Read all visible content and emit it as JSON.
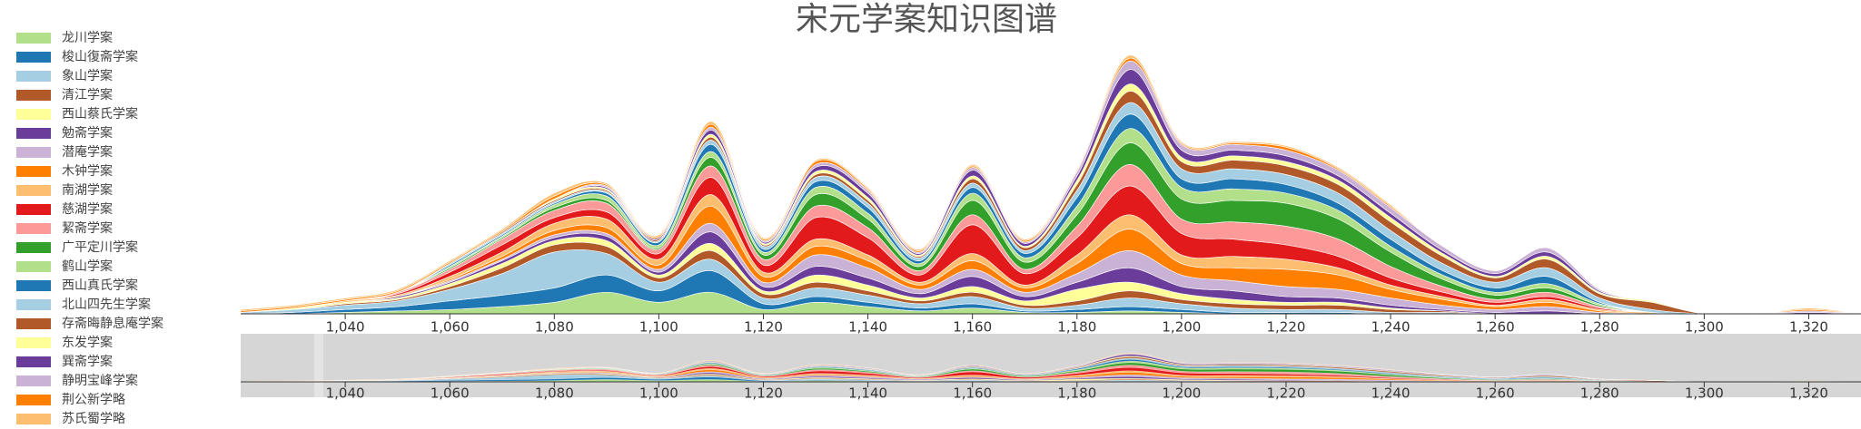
{
  "chart_data": {
    "type": "streamgraph",
    "title": "宋元学案知识图谱",
    "x": [
      1020,
      1030,
      1040,
      1050,
      1060,
      1070,
      1080,
      1090,
      1100,
      1110,
      1120,
      1130,
      1140,
      1150,
      1160,
      1170,
      1180,
      1190,
      1200,
      1210,
      1220,
      1230,
      1240,
      1250,
      1260,
      1270,
      1280,
      1290,
      1300,
      1310,
      1320,
      1330
    ],
    "xlim": [
      1020,
      1330
    ],
    "xticks": [
      {
        "value": 1040,
        "label": "1,040"
      },
      {
        "value": 1060,
        "label": "1,060"
      },
      {
        "value": 1080,
        "label": "1,080"
      },
      {
        "value": 1100,
        "label": "1,100"
      },
      {
        "value": 1120,
        "label": "1,120"
      },
      {
        "value": 1140,
        "label": "1,140"
      },
      {
        "value": 1160,
        "label": "1,160"
      },
      {
        "value": 1180,
        "label": "1,180"
      },
      {
        "value": 1200,
        "label": "1,200"
      },
      {
        "value": 1220,
        "label": "1,220"
      },
      {
        "value": 1240,
        "label": "1,240"
      },
      {
        "value": 1260,
        "label": "1,260"
      },
      {
        "value": 1280,
        "label": "1,280"
      },
      {
        "value": 1300,
        "label": "1,300"
      },
      {
        "value": 1320,
        "label": "1,320"
      }
    ],
    "series": [
      {
        "name": "龙川学案",
        "color": "#b2df8a",
        "values": [
          0,
          0,
          0.1,
          0.2,
          0.3,
          0.5,
          0.8,
          1.5,
          0.8,
          1.5,
          0.3,
          0.8,
          0.5,
          0.2,
          0.4,
          0.1,
          0.1,
          0.2,
          0.1,
          0,
          0,
          0,
          0,
          0,
          0,
          0,
          0,
          0,
          0,
          0,
          0,
          0
        ]
      },
      {
        "name": "梭山復斋学案",
        "color": "#1f78b4",
        "values": [
          0,
          0.1,
          0.2,
          0.3,
          0.6,
          0.8,
          1,
          1.2,
          0.8,
          1.5,
          0.4,
          0.4,
          0.3,
          0.2,
          0.3,
          0.1,
          0.2,
          0.3,
          0.2,
          0.1,
          0.1,
          0.1,
          0,
          0,
          0,
          0,
          0,
          0,
          0,
          0,
          0,
          0
        ]
      },
      {
        "name": "象山学案",
        "color": "#a6cee3",
        "values": [
          0.1,
          0.2,
          0.3,
          0.4,
          0.8,
          1.5,
          2.5,
          1.5,
          0.6,
          0.8,
          0.4,
          0.6,
          0.5,
          0.3,
          0.5,
          0.2,
          0.3,
          0.6,
          0.4,
          0.3,
          0.2,
          0.2,
          0.1,
          0.1,
          0,
          0,
          0,
          0,
          0,
          0,
          0,
          0
        ]
      },
      {
        "name": "清江学案",
        "color": "#b15928",
        "values": [
          0,
          0,
          0.1,
          0.1,
          0.2,
          0.4,
          0.5,
          0.5,
          0.3,
          0.6,
          0.3,
          0.4,
          0.3,
          0.2,
          0.3,
          0.2,
          0.3,
          0.5,
          0.3,
          0.3,
          0.3,
          0.3,
          0.2,
          0.1,
          0,
          0,
          0,
          0,
          0,
          0,
          0,
          0
        ]
      },
      {
        "name": "西山蔡氏学案",
        "color": "#ffff99",
        "values": [
          0,
          0.1,
          0.1,
          0.1,
          0.2,
          0.3,
          0.3,
          0.4,
          0.2,
          0.5,
          0.2,
          0.5,
          0.4,
          0.2,
          0.4,
          0.3,
          0.8,
          0.6,
          0.4,
          0.3,
          0.2,
          0.2,
          0.1,
          0,
          0,
          0,
          0,
          0,
          0,
          0,
          0,
          0
        ]
      },
      {
        "name": "勉斋学案",
        "color": "#6a3d9a",
        "values": [
          0,
          0,
          0,
          0.1,
          0.1,
          0.2,
          0.2,
          0.3,
          0.2,
          0.8,
          0.3,
          0.6,
          0.5,
          0.3,
          0.7,
          0.3,
          0.5,
          1,
          0.5,
          0.6,
          0.4,
          0.3,
          0.2,
          0.1,
          0.1,
          0.2,
          0,
          0,
          0,
          0,
          0,
          0
        ]
      },
      {
        "name": "潜庵学案",
        "color": "#cab2d6",
        "values": [
          0,
          0,
          0,
          0,
          0.1,
          0.1,
          0.2,
          0.2,
          0.2,
          0.6,
          0.3,
          0.8,
          0.7,
          0.3,
          0.5,
          0.3,
          0.6,
          1.2,
          0.8,
          0.7,
          0.7,
          0.6,
          0.5,
          0.3,
          0.2,
          0.3,
          0.1,
          0,
          0,
          0,
          0,
          0
        ]
      },
      {
        "name": "木钟学案",
        "color": "#ff7f00",
        "values": [
          0,
          0,
          0,
          0,
          0.1,
          0.2,
          0.3,
          0.4,
          0.3,
          1.2,
          0.4,
          0.6,
          0.5,
          0.3,
          0.6,
          0.3,
          0.7,
          1.5,
          0.8,
          0.9,
          1.2,
          1,
          0.6,
          0.4,
          0.2,
          0.3,
          0.1,
          0,
          0,
          0,
          0,
          0
        ]
      },
      {
        "name": "南湖学案",
        "color": "#fdbf6f",
        "values": [
          0,
          0,
          0.1,
          0.1,
          0.2,
          0.3,
          0.5,
          0.6,
          0.4,
          0.8,
          0.3,
          0.5,
          0.4,
          0.2,
          0.5,
          0.2,
          0.6,
          1,
          0.6,
          0.8,
          0.7,
          0.5,
          0.3,
          0.2,
          0.1,
          0.2,
          0.1,
          0.1,
          0,
          0,
          0,
          0
        ]
      },
      {
        "name": "慈湖学案",
        "color": "#e31a1c",
        "values": [
          0,
          0,
          0,
          0.1,
          0.3,
          0.5,
          0.4,
          0.5,
          0.4,
          1.2,
          0.5,
          1.5,
          1.2,
          0.5,
          2,
          0.8,
          1.2,
          2,
          1.5,
          1.2,
          1,
          0.8,
          0.5,
          0.3,
          0.2,
          0.2,
          0.1,
          0,
          0,
          0,
          0,
          0
        ]
      },
      {
        "name": "絜斋学案",
        "color": "#fb9a99",
        "values": [
          0,
          0,
          0,
          0.1,
          0.2,
          0.4,
          0.5,
          0.6,
          0.3,
          0.8,
          0.4,
          0.8,
          0.7,
          0.3,
          0.7,
          0.3,
          0.8,
          1.5,
          1,
          1.2,
          1.3,
          1.2,
          0.8,
          0.4,
          0.2,
          0.3,
          0.1,
          0,
          0,
          0,
          0,
          0
        ]
      },
      {
        "name": "广平定川学案",
        "color": "#33a02c",
        "values": [
          0,
          0,
          0,
          0,
          0.1,
          0.1,
          0.2,
          0.2,
          0.1,
          0.6,
          0.3,
          0.8,
          0.6,
          0.3,
          1,
          0.5,
          0.8,
          1.5,
          1.4,
          1.5,
          1.6,
          1.4,
          1,
          0.5,
          0.3,
          0.3,
          0.1,
          0,
          0,
          0,
          0,
          0
        ]
      },
      {
        "name": "鹤山学案",
        "color": "#b2df8a",
        "values": [
          0,
          0,
          0,
          0,
          0.1,
          0.1,
          0.2,
          0.3,
          0.2,
          0.4,
          0.2,
          0.5,
          0.4,
          0.2,
          0.5,
          0.3,
          0.6,
          1,
          0.8,
          0.8,
          0.7,
          0.6,
          0.4,
          0.3,
          0.2,
          0.3,
          0.1,
          0,
          0,
          0,
          0,
          0
        ]
      },
      {
        "name": "西山真氏学案",
        "color": "#1f78b4",
        "values": [
          0,
          0,
          0,
          0,
          0.1,
          0.1,
          0.1,
          0.2,
          0.2,
          0.5,
          0.2,
          0.4,
          0.4,
          0.2,
          0.4,
          0.3,
          0.6,
          1,
          0.6,
          0.7,
          0.6,
          0.5,
          0.5,
          0.3,
          0.3,
          0.5,
          0.1,
          0,
          0,
          0,
          0,
          0
        ]
      },
      {
        "name": "北山四先生学案",
        "color": "#a6cee3",
        "values": [
          0,
          0,
          0,
          0,
          0.1,
          0.1,
          0.1,
          0.1,
          0.1,
          0.3,
          0.2,
          0.3,
          0.3,
          0.2,
          0.3,
          0.2,
          0.5,
          0.8,
          0.7,
          0.7,
          0.7,
          0.7,
          0.6,
          0.5,
          0.4,
          0.6,
          0.3,
          0.2,
          0,
          0,
          0,
          0
        ]
      },
      {
        "name": "存斋晦静息庵学案",
        "color": "#b15928",
        "values": [
          0,
          0,
          0,
          0,
          0,
          0.1,
          0.1,
          0.1,
          0.1,
          0.2,
          0.1,
          0.2,
          0.2,
          0.1,
          0.3,
          0.2,
          0.4,
          0.8,
          0.5,
          0.6,
          0.6,
          0.6,
          0.6,
          0.5,
          0.3,
          0.6,
          0.3,
          0.5,
          0,
          0,
          0,
          0
        ]
      },
      {
        "name": "东发学案",
        "color": "#ffff99",
        "values": [
          0,
          0,
          0,
          0,
          0,
          0,
          0.1,
          0.1,
          0,
          0.2,
          0.1,
          0.2,
          0.2,
          0.1,
          0.2,
          0.1,
          0.3,
          0.5,
          0.3,
          0.3,
          0.3,
          0.3,
          0.3,
          0.2,
          0.1,
          0.2,
          0.1,
          0.1,
          0,
          0,
          0,
          0
        ]
      },
      {
        "name": "巽斋学案",
        "color": "#6a3d9a",
        "values": [
          0,
          0,
          0,
          0,
          0,
          0,
          0,
          0.1,
          0.1,
          0.3,
          0.1,
          0.3,
          0.3,
          0.1,
          0.4,
          0.2,
          0.3,
          1,
          0.5,
          0.4,
          0.4,
          0.3,
          0.3,
          0.2,
          0.2,
          0.3,
          0.1,
          0,
          0,
          0,
          0.1,
          0
        ]
      },
      {
        "name": "静明宝峰学案",
        "color": "#cab2d6",
        "values": [
          0,
          0,
          0,
          0,
          0,
          0,
          0,
          0.1,
          0,
          0.2,
          0.1,
          0.2,
          0.2,
          0.1,
          0.2,
          0.1,
          0.3,
          0.6,
          0.4,
          0.4,
          0.4,
          0.4,
          0.4,
          0.3,
          0.2,
          0.3,
          0.1,
          0,
          0,
          0,
          0.1,
          0
        ]
      },
      {
        "name": "荆公新学略",
        "color": "#ff7f00",
        "values": [
          0.1,
          0.1,
          0.1,
          0.1,
          0.1,
          0.1,
          0.2,
          0.1,
          0.1,
          0.2,
          0.1,
          0.2,
          0.1,
          0.1,
          0.1,
          0.1,
          0.1,
          0.2,
          0.1,
          0.1,
          0.2,
          0.1,
          0.1,
          0,
          0,
          0,
          0,
          0,
          0,
          0,
          0.1,
          0
        ]
      },
      {
        "name": "苏氏蜀学略",
        "color": "#fdbf6f",
        "values": [
          0.1,
          0.1,
          0.1,
          0.1,
          0.1,
          0.1,
          0.2,
          0.1,
          0.1,
          0.2,
          0.1,
          0.1,
          0.1,
          0.1,
          0.1,
          0.1,
          0.1,
          0.2,
          0.1,
          0.1,
          0.1,
          0.1,
          0.1,
          0,
          0,
          0,
          0,
          0,
          0,
          0,
          0.1,
          0
        ]
      }
    ]
  }
}
